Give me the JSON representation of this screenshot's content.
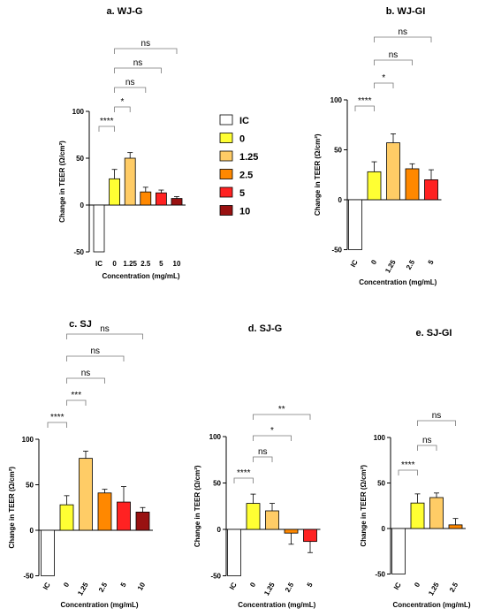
{
  "colors": {
    "IC": "#ffffff",
    "0": "#ffff33",
    "1.25": "#ffcc66",
    "2.5": "#ff8800",
    "5": "#ff2222",
    "10": "#991111"
  },
  "legend": {
    "entries": [
      {
        "label": "IC",
        "key": "IC"
      },
      {
        "label": "0",
        "key": "0"
      },
      {
        "label": "1.25",
        "key": "1.25"
      },
      {
        "label": "2.5",
        "key": "2.5"
      },
      {
        "label": "5",
        "key": "5"
      },
      {
        "label": "10",
        "key": "10"
      }
    ]
  },
  "chart_data": [
    {
      "type": "bar",
      "title": "a. WJ-G",
      "xlabel": "Concentration (mg/mL)",
      "ylabel": "Change in TEER (Ω/cm²)",
      "ylim": [
        -50,
        100
      ],
      "yticks": [
        "-50",
        "0",
        "50",
        "100"
      ],
      "categories": [
        "IC",
        "0",
        "1.25",
        "2.5",
        "5",
        "10"
      ],
      "values": [
        -50,
        28,
        50,
        14,
        13,
        7
      ],
      "errors": [
        0,
        10,
        6,
        5,
        3,
        2
      ],
      "significance": [
        {
          "label": "****",
          "from": "IC",
          "to": "0"
        },
        {
          "label": "*",
          "from": "0",
          "to": "1.25"
        },
        {
          "label": "ns",
          "from": "0",
          "to": "2.5"
        },
        {
          "label": "ns",
          "from": "0",
          "to": "5"
        },
        {
          "label": "ns",
          "from": "0",
          "to": "10"
        }
      ]
    },
    {
      "type": "bar",
      "title": "b. WJ-GI",
      "xlabel": "Concentration (mg/mL)",
      "ylabel": "Change in TEER (Ω/cm²)",
      "ylim": [
        -50,
        100
      ],
      "yticks": [
        "-50",
        "0",
        "50",
        "100"
      ],
      "categories": [
        "IC",
        "0",
        "1.25",
        "2.5",
        "5"
      ],
      "values": [
        -50,
        28,
        57,
        31,
        20
      ],
      "errors": [
        0,
        10,
        9,
        5,
        10
      ],
      "significance": [
        {
          "label": "****",
          "from": "IC",
          "to": "0"
        },
        {
          "label": "*",
          "from": "0",
          "to": "1.25"
        },
        {
          "label": "ns",
          "from": "0",
          "to": "2.5"
        },
        {
          "label": "ns",
          "from": "0",
          "to": "5"
        }
      ]
    },
    {
      "type": "bar",
      "title": "c. SJ",
      "xlabel": "Concentration (mg/mL)",
      "ylabel": "Change in TEER (Ω/cm²)",
      "ylim": [
        -50,
        100
      ],
      "yticks": [
        "-50",
        "0",
        "50",
        "100"
      ],
      "categories": [
        "IC",
        "0",
        "1.25",
        "2.5",
        "5",
        "10"
      ],
      "values": [
        -50,
        28,
        79,
        41,
        31,
        20
      ],
      "errors": [
        0,
        10,
        8,
        4,
        17,
        5
      ],
      "significance": [
        {
          "label": "****",
          "from": "IC",
          "to": "0"
        },
        {
          "label": "***",
          "from": "0",
          "to": "1.25"
        },
        {
          "label": "ns",
          "from": "0",
          "to": "2.5"
        },
        {
          "label": "ns",
          "from": "0",
          "to": "5"
        },
        {
          "label": "ns",
          "from": "0",
          "to": "10"
        }
      ]
    },
    {
      "type": "bar",
      "title": "d. SJ-G",
      "xlabel": "Concentration (mg/mL)",
      "ylabel": "Change in TEER (Ω/cm²)",
      "ylim": [
        -50,
        100
      ],
      "yticks": [
        "-50",
        "0",
        "50",
        "100"
      ],
      "categories": [
        "IC",
        "0",
        "1.25",
        "2.5",
        "5"
      ],
      "values": [
        -50,
        28,
        20,
        -4,
        -13
      ],
      "errors": [
        0,
        10,
        8,
        12,
        12
      ],
      "significance": [
        {
          "label": "****",
          "from": "IC",
          "to": "0"
        },
        {
          "label": "ns",
          "from": "0",
          "to": "1.25"
        },
        {
          "label": "*",
          "from": "0",
          "to": "2.5"
        },
        {
          "label": "**",
          "from": "0",
          "to": "5"
        }
      ]
    },
    {
      "type": "bar",
      "title": "e. SJ-GI",
      "xlabel": "Concentration (mg/mL)",
      "ylabel": "Change in TEER (Ω/cm²)",
      "ylim": [
        -50,
        100
      ],
      "yticks": [
        "-50",
        "0",
        "50",
        "100"
      ],
      "categories": [
        "IC",
        "0",
        "1.25",
        "2.5"
      ],
      "values": [
        -50,
        28,
        34,
        4
      ],
      "errors": [
        0,
        10,
        5,
        7
      ],
      "significance": [
        {
          "label": "****",
          "from": "IC",
          "to": "0"
        },
        {
          "label": "ns",
          "from": "0",
          "to": "1.25"
        },
        {
          "label": "ns",
          "from": "0",
          "to": "2.5"
        }
      ]
    }
  ]
}
